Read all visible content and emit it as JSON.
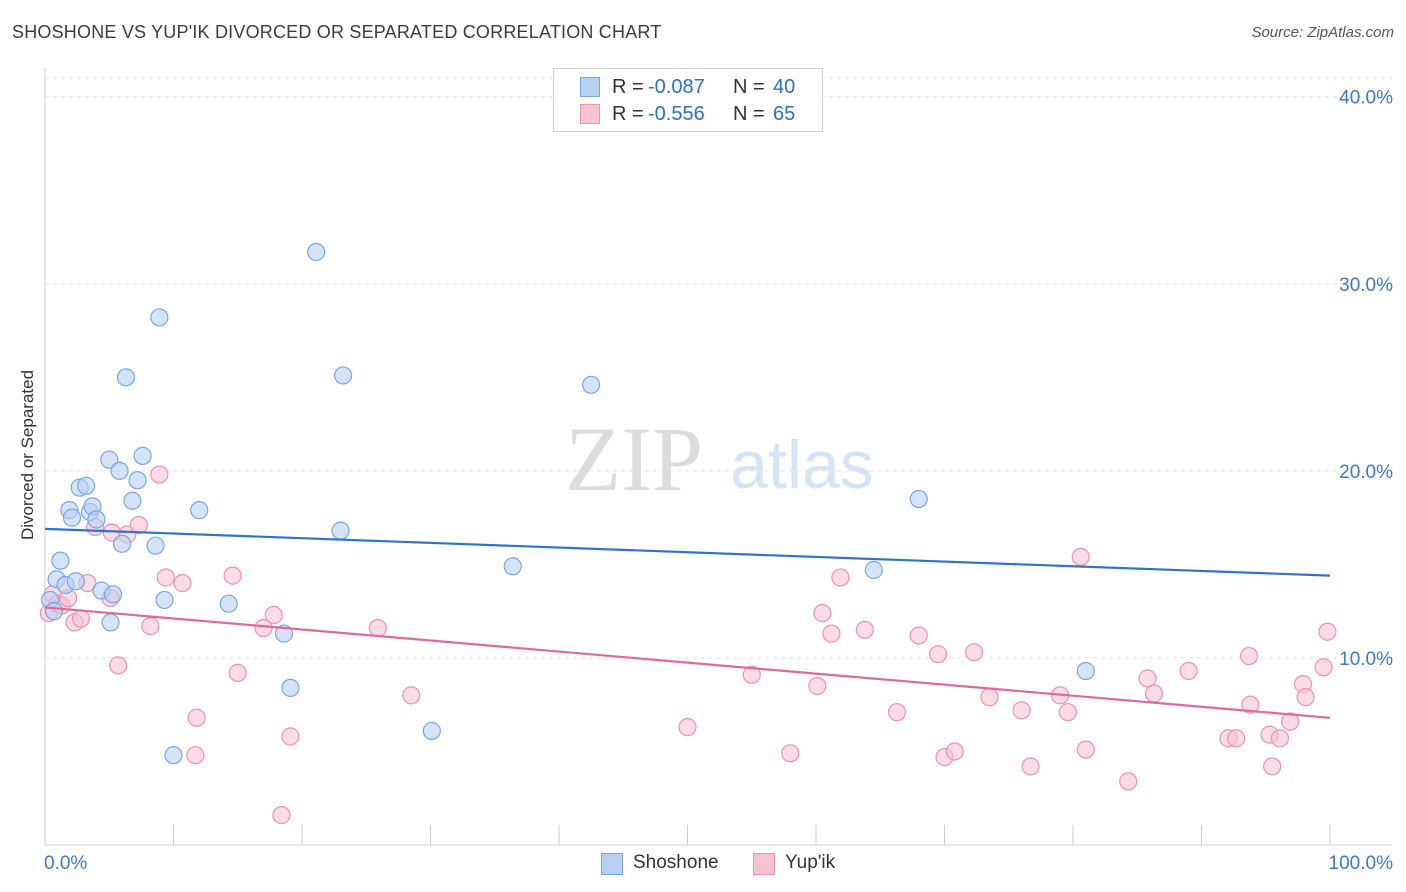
{
  "header": {
    "title": "SHOSHONE VS YUP'IK DIVORCED OR SEPARATED CORRELATION CHART",
    "source": "Source: ZipAtlas.com"
  },
  "legend": {
    "rows": [
      {
        "r_label": "R =",
        "r_value": "-0.087",
        "n_label": "N =",
        "n_value": "40"
      },
      {
        "r_label": "R =",
        "r_value": "-0.556",
        "n_label": "N =",
        "n_value": "65"
      }
    ]
  },
  "bottom_legend": [
    "Shoshone",
    "Yup'ik"
  ],
  "watermark": {
    "left": "ZIP",
    "right": "atlas"
  },
  "colors": {
    "shoshone_fill": "#b8d0f2",
    "shoshone_stroke": "#7aa6e0",
    "shoshone_line": "#2f74cc",
    "yupik_fill": "#f8c3d3",
    "yupik_stroke": "#ec93b0",
    "yupik_line": "#e0699a",
    "tick_label": "#3e78c9"
  },
  "chart_data": {
    "type": "scatter",
    "title": "SHOSHONE VS YUP'IK DIVORCED OR SEPARATED CORRELATION CHART",
    "xlabel": "",
    "ylabel": "Divorced or Separated",
    "xlim": [
      0,
      100
    ],
    "ylim": [
      0,
      41
    ],
    "x_tick_labels": [
      "0.0%",
      "100.0%"
    ],
    "y_ticks": [
      10,
      20,
      30,
      40
    ],
    "y_tick_labels": [
      "10.0%",
      "20.0%",
      "30.0%",
      "40.0%"
    ],
    "grid": "horizontal dashed",
    "legend_position": "top-center",
    "series": [
      {
        "name": "Shoshone",
        "r": -0.087,
        "n": 40,
        "trend": {
          "x": [
            0,
            100
          ],
          "y": [
            16.9,
            14.4
          ]
        },
        "points": [
          [
            0.4,
            13.1
          ],
          [
            0.7,
            12.5
          ],
          [
            0.9,
            14.2
          ],
          [
            1.2,
            15.2
          ],
          [
            1.6,
            13.9
          ],
          [
            1.9,
            17.9
          ],
          [
            2.1,
            17.5
          ],
          [
            2.4,
            14.1
          ],
          [
            2.7,
            19.1
          ],
          [
            3.2,
            19.2
          ],
          [
            3.5,
            17.8
          ],
          [
            3.7,
            18.1
          ],
          [
            4.0,
            17.4
          ],
          [
            4.4,
            13.6
          ],
          [
            5.0,
            20.6
          ],
          [
            5.1,
            11.9
          ],
          [
            5.3,
            13.4
          ],
          [
            5.8,
            20.0
          ],
          [
            6.0,
            16.1
          ],
          [
            6.3,
            25.0
          ],
          [
            6.8,
            18.4
          ],
          [
            7.2,
            19.5
          ],
          [
            7.6,
            20.8
          ],
          [
            8.6,
            16.0
          ],
          [
            8.9,
            28.2
          ],
          [
            9.3,
            13.1
          ],
          [
            10.0,
            4.8
          ],
          [
            12.0,
            17.9
          ],
          [
            14.3,
            12.9
          ],
          [
            18.6,
            11.3
          ],
          [
            19.1,
            8.4
          ],
          [
            21.1,
            31.7
          ],
          [
            23.0,
            16.8
          ],
          [
            23.2,
            25.1
          ],
          [
            30.1,
            6.1
          ],
          [
            36.4,
            14.9
          ],
          [
            42.5,
            24.6
          ],
          [
            64.5,
            14.7
          ],
          [
            68.0,
            18.5
          ],
          [
            81.0,
            9.3
          ]
        ]
      },
      {
        "name": "Yup'ik",
        "r": -0.556,
        "n": 65,
        "trend": {
          "x": [
            0,
            100
          ],
          "y": [
            12.7,
            6.8
          ]
        },
        "points": [
          [
            0.3,
            12.4
          ],
          [
            0.6,
            13.4
          ],
          [
            1.0,
            12.9
          ],
          [
            1.3,
            12.8
          ],
          [
            1.8,
            13.2
          ],
          [
            2.3,
            11.9
          ],
          [
            2.8,
            12.1
          ],
          [
            3.3,
            14.0
          ],
          [
            3.9,
            17.0
          ],
          [
            5.2,
            16.7
          ],
          [
            5.1,
            13.2
          ],
          [
            5.7,
            9.6
          ],
          [
            6.4,
            16.6
          ],
          [
            7.3,
            17.1
          ],
          [
            8.2,
            11.7
          ],
          [
            8.9,
            19.8
          ],
          [
            9.4,
            14.3
          ],
          [
            10.7,
            14.0
          ],
          [
            11.8,
            6.8
          ],
          [
            11.7,
            4.8
          ],
          [
            14.6,
            14.4
          ],
          [
            15.0,
            9.2
          ],
          [
            17.0,
            11.6
          ],
          [
            17.8,
            12.3
          ],
          [
            18.4,
            1.6
          ],
          [
            19.1,
            5.8
          ],
          [
            25.9,
            11.6
          ],
          [
            28.5,
            8.0
          ],
          [
            50.0,
            6.3
          ],
          [
            55.0,
            9.1
          ],
          [
            58.0,
            4.9
          ],
          [
            60.1,
            8.5
          ],
          [
            60.5,
            12.4
          ],
          [
            61.2,
            11.3
          ],
          [
            61.9,
            14.3
          ],
          [
            63.8,
            11.5
          ],
          [
            66.3,
            7.1
          ],
          [
            68.0,
            11.2
          ],
          [
            69.5,
            10.2
          ],
          [
            70.0,
            4.7
          ],
          [
            70.8,
            5.0
          ],
          [
            72.3,
            10.3
          ],
          [
            73.5,
            7.9
          ],
          [
            76.0,
            7.2
          ],
          [
            76.7,
            4.2
          ],
          [
            79.0,
            8.0
          ],
          [
            79.6,
            7.1
          ],
          [
            80.6,
            15.4
          ],
          [
            81.0,
            5.1
          ],
          [
            84.3,
            3.4
          ],
          [
            85.8,
            8.9
          ],
          [
            86.3,
            8.1
          ],
          [
            89.0,
            9.3
          ],
          [
            92.1,
            5.7
          ],
          [
            92.7,
            5.7
          ],
          [
            93.7,
            10.1
          ],
          [
            93.8,
            7.5
          ],
          [
            95.3,
            5.9
          ],
          [
            95.5,
            4.2
          ],
          [
            96.1,
            5.7
          ],
          [
            96.9,
            6.6
          ],
          [
            97.9,
            8.6
          ],
          [
            98.1,
            7.9
          ],
          [
            99.5,
            9.5
          ],
          [
            99.8,
            11.4
          ]
        ]
      }
    ]
  }
}
